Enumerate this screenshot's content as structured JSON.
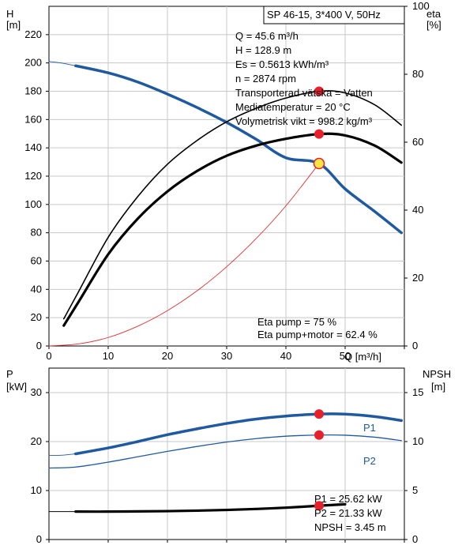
{
  "colors": {
    "blue": "#1f5aa0",
    "black": "#000000",
    "red": "#e8202a",
    "yellow": "#f5e642",
    "grid": "#c8c8c8",
    "thin_red": "#e03030"
  },
  "top": {
    "title_box": "SP 46-15, 3*400 V, 50Hz",
    "y_left_label": "H",
    "y_left_unit": "[m]",
    "y_right_label": "eta",
    "y_right_unit": "[%]",
    "x_label": "Q [m³/h]",
    "info": [
      "Q = 45.6 m³/h",
      "H = 128.9 m",
      "Es = 0.5613 kWh/m³",
      "n = 2874 rpm",
      "Transporterad vätska = Vatten",
      "Mediatemperatur = 20 °C",
      "Volymetrisk vikt = 998.2 kg/m³"
    ],
    "eta_info": [
      "Eta pump = 75 %",
      "Eta pump+motor = 62.4 %"
    ]
  },
  "bottom": {
    "y_left_label": "P",
    "y_left_unit": "[kW]",
    "y_right_label": "NPSH",
    "y_right_unit": "[m]",
    "info": [
      "P1 = 25.62 kW",
      "P2 = 21.33 kW",
      "NPSH = 3.45 m"
    ],
    "p1_label": "P1",
    "p2_label": "P2"
  },
  "chart_data": [
    {
      "type": "line",
      "title": "SP 46-15, 3*400 V, 50Hz",
      "xlabel": "Q [m³/h]",
      "ylabel": "H [m]",
      "y2label": "eta [%]",
      "xlim": [
        0,
        60
      ],
      "ylim": [
        0,
        240
      ],
      "y2lim": [
        0,
        100
      ],
      "x_ticks": [
        0,
        10,
        20,
        30,
        40,
        50
      ],
      "y_ticks": [
        0,
        20,
        40,
        60,
        80,
        100,
        120,
        140,
        160,
        180,
        200,
        220
      ],
      "y2_ticks": [
        0,
        20,
        40,
        60,
        80,
        100
      ],
      "grid": true,
      "series": [
        {
          "axis": "left",
          "style": "thick-blue",
          "role": "H",
          "x": [
            4.5,
            10,
            15,
            20,
            25,
            30,
            35,
            40,
            45.6,
            50,
            55,
            59.5
          ],
          "y": [
            198,
            193,
            186.5,
            178,
            168.5,
            158,
            146,
            133,
            128.9,
            111,
            95,
            80
          ]
        },
        {
          "axis": "left",
          "style": "thin-blue-extension",
          "role": "H-ext",
          "x": [
            0,
            2,
            4.5
          ],
          "y": [
            201,
            200,
            198
          ]
        },
        {
          "axis": "right",
          "style": "thin-black",
          "role": "eta-pump",
          "x": [
            2.5,
            5,
            10,
            15,
            20,
            25,
            30,
            35,
            40,
            45.6,
            50,
            55,
            59.5
          ],
          "y": [
            8,
            16,
            32,
            44,
            53.5,
            60.5,
            66,
            70,
            73,
            75,
            74.5,
            71,
            65
          ]
        },
        {
          "axis": "right",
          "style": "thick-black",
          "role": "eta-pump-motor",
          "x": [
            2.5,
            5,
            10,
            15,
            20,
            25,
            30,
            35,
            40,
            45.6,
            50,
            55,
            59.5
          ],
          "y": [
            6,
            13,
            27,
            37.5,
            45.5,
            51.5,
            56,
            59,
            61,
            62.4,
            62,
            59,
            54
          ]
        },
        {
          "axis": "left",
          "style": "thin-red",
          "role": "system-curve",
          "x": [
            0,
            5,
            10,
            15,
            20,
            25,
            30,
            35,
            40,
            45.6
          ],
          "y": [
            0,
            1.5,
            6,
            14,
            25,
            39,
            56,
            76,
            99,
            128.9
          ]
        }
      ],
      "points": [
        {
          "axis": "left",
          "x": 45.6,
          "y": 128.9,
          "style": "duty-point"
        },
        {
          "axis": "right",
          "x": 45.6,
          "y": 75,
          "style": "red-dot"
        },
        {
          "axis": "right",
          "x": 45.6,
          "y": 62.4,
          "style": "red-dot"
        }
      ]
    },
    {
      "type": "line",
      "ylabel": "P [kW]",
      "y2label": "NPSH [m]",
      "xlim": [
        0,
        60
      ],
      "ylim": [
        0,
        35
      ],
      "y2lim": [
        0,
        17.5
      ],
      "y_ticks": [
        0,
        10,
        20,
        30
      ],
      "y2_ticks": [
        0,
        5,
        10,
        15
      ],
      "grid": true,
      "series": [
        {
          "axis": "left",
          "name": "P1",
          "style": "thick-blue",
          "x": [
            4.5,
            10,
            15,
            20,
            25,
            30,
            35,
            40,
            45.6,
            50,
            55,
            59.5
          ],
          "y": [
            17.5,
            18.7,
            20,
            21.4,
            22.6,
            23.7,
            24.6,
            25.2,
            25.62,
            25.6,
            25.1,
            24.3
          ]
        },
        {
          "axis": "left",
          "style": "thin-blue-extension",
          "x": [
            0,
            2,
            4.5
          ],
          "y": [
            17.2,
            17.2,
            17.5
          ]
        },
        {
          "axis": "left",
          "name": "P2",
          "style": "thin-blue",
          "x": [
            0,
            4.5,
            10,
            15,
            20,
            25,
            30,
            35,
            40,
            45.6,
            50,
            55,
            59.5
          ],
          "y": [
            14.6,
            14.8,
            15.8,
            16.9,
            18,
            19,
            19.9,
            20.6,
            21.1,
            21.33,
            21.3,
            20.9,
            20.2
          ]
        },
        {
          "axis": "right",
          "style": "thick-black",
          "role": "NPSH",
          "x": [
            4.5,
            10,
            15,
            20,
            25,
            30,
            35,
            40,
            45.6,
            50
          ],
          "y": [
            2.85,
            2.85,
            2.87,
            2.9,
            2.95,
            3.02,
            3.12,
            3.25,
            3.45,
            3.6
          ]
        },
        {
          "axis": "right",
          "style": "thin-black-extension",
          "x": [
            0,
            4.5
          ],
          "y": [
            2.85,
            2.85
          ]
        }
      ],
      "points": [
        {
          "axis": "left",
          "x": 45.6,
          "y": 25.62,
          "style": "red-dot"
        },
        {
          "axis": "left",
          "x": 45.6,
          "y": 21.33,
          "style": "red-dot"
        },
        {
          "axis": "right",
          "x": 45.6,
          "y": 3.45,
          "style": "red-dot"
        }
      ]
    }
  ]
}
